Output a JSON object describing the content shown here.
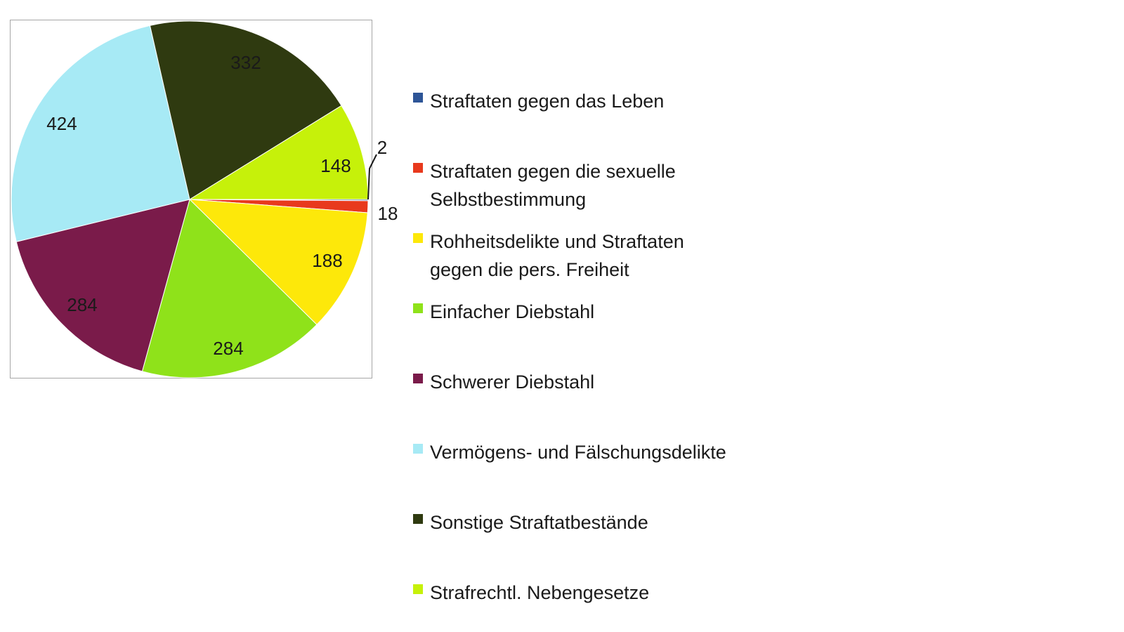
{
  "chart_data": {
    "type": "pie",
    "title": "",
    "slices": [
      {
        "label": "Straftaten gegen das Leben",
        "value": 2,
        "color": "#2e5597"
      },
      {
        "label": "Straftaten gegen die sexuelle Selbstbestimmung",
        "value": 18,
        "color": "#e8391d"
      },
      {
        "label": "Rohheitsdelikte  und Straftaten gegen die pers. Freiheit",
        "value": 188,
        "color": "#fde80a"
      },
      {
        "label": "Einfacher Diebstahl",
        "value": 284,
        "color": "#8fe21a"
      },
      {
        "label": "Schwerer Diebstahl",
        "value": 284,
        "color": "#7a1b4a"
      },
      {
        "label": "Vermögens- und Fälschungsdelikte",
        "value": 424,
        "color": "#a7eaf5"
      },
      {
        "label": "Sonstige Straftatbestände",
        "value": 332,
        "color": "#2f3a10"
      },
      {
        "label": "Strafrechtl.  Nebengesetze",
        "value": 148,
        "color": "#c6f10a"
      }
    ],
    "legend_position": "right"
  }
}
